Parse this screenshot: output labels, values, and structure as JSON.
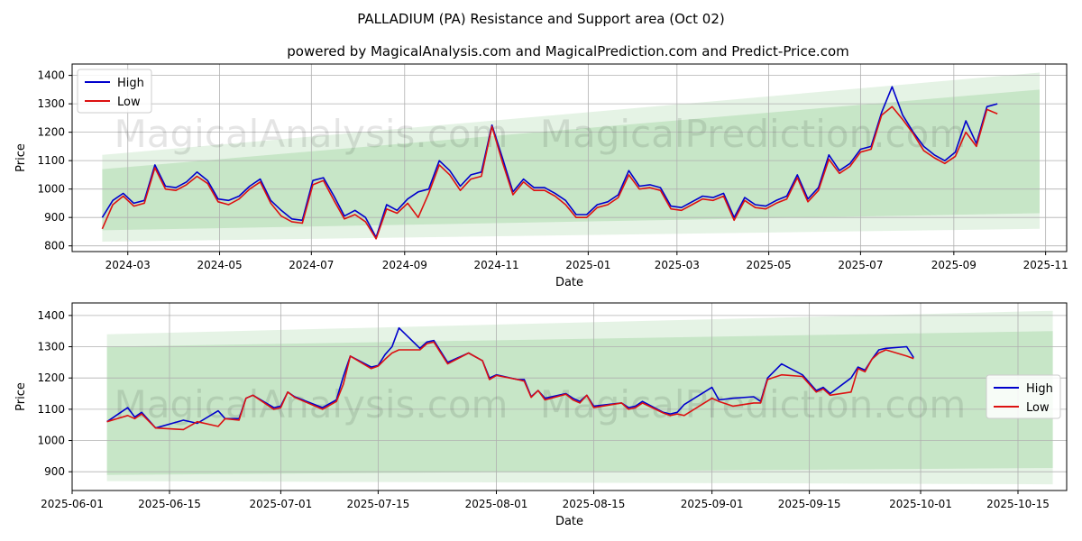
{
  "chart_data": {
    "title": "PALLADIUM (PA) Resistance and Support area (Oct 02)",
    "subtitle": "powered by MagicalAnalysis.com and MagicalPrediction.com and Predict-Price.com",
    "watermarks": [
      "MagicalAnalysis.com",
      "MagicalPrediction.com"
    ],
    "colors": {
      "high": "#0000cc",
      "low": "#dd1111",
      "band": "#2ca02c"
    },
    "charts": [
      {
        "type": "line",
        "xlabel": "Date",
        "ylabel": "Price",
        "xlim": [
          "2024-01-24",
          "2025-11-15"
        ],
        "ylim": [
          780,
          1440
        ],
        "xticks": [
          "2024-03-01",
          "2024-05-01",
          "2024-07-01",
          "2024-09-01",
          "2024-11-01",
          "2025-01-01",
          "2025-03-01",
          "2025-05-01",
          "2025-07-01",
          "2025-09-01",
          "2025-11-01"
        ],
        "xtick_labels": [
          "2024-03",
          "2024-05",
          "2024-07",
          "2024-09",
          "2024-11",
          "2025-01",
          "2025-03",
          "2025-05",
          "2025-07",
          "2025-09",
          "2025-11"
        ],
        "yticks": [
          800,
          900,
          1000,
          1100,
          1200,
          1300,
          1400
        ],
        "legend": [
          "High",
          "Low"
        ],
        "legend_position": "top-left",
        "grid": true,
        "bands": [
          {
            "x": [
              "2024-02-13",
              "2025-10-28"
            ],
            "upper": [
              1120,
              1410
            ],
            "lower": [
              815,
              860
            ]
          },
          {
            "x": [
              "2024-02-13",
              "2025-10-28"
            ],
            "upper": [
              1070,
              1350
            ],
            "lower": [
              855,
              915
            ]
          }
        ],
        "series": [
          {
            "name": "High",
            "x": [
              "2024-02-13",
              "2024-02-20",
              "2024-02-27",
              "2024-03-05",
              "2024-03-12",
              "2024-03-19",
              "2024-03-26",
              "2024-04-02",
              "2024-04-09",
              "2024-04-16",
              "2024-04-23",
              "2024-04-30",
              "2024-05-07",
              "2024-05-14",
              "2024-05-21",
              "2024-05-28",
              "2024-06-04",
              "2024-06-11",
              "2024-06-18",
              "2024-06-25",
              "2024-07-02",
              "2024-07-09",
              "2024-07-16",
              "2024-07-23",
              "2024-07-30",
              "2024-08-06",
              "2024-08-13",
              "2024-08-20",
              "2024-08-27",
              "2024-09-03",
              "2024-09-10",
              "2024-09-17",
              "2024-09-24",
              "2024-10-01",
              "2024-10-08",
              "2024-10-15",
              "2024-10-22",
              "2024-10-29",
              "2024-11-05",
              "2024-11-12",
              "2024-11-19",
              "2024-11-26",
              "2024-12-03",
              "2024-12-10",
              "2024-12-17",
              "2024-12-24",
              "2024-12-31",
              "2025-01-07",
              "2025-01-14",
              "2025-01-21",
              "2025-01-28",
              "2025-02-04",
              "2025-02-11",
              "2025-02-18",
              "2025-02-25",
              "2025-03-04",
              "2025-03-11",
              "2025-03-18",
              "2025-03-25",
              "2025-04-01",
              "2025-04-08",
              "2025-04-15",
              "2025-04-22",
              "2025-04-29",
              "2025-05-06",
              "2025-05-13",
              "2025-05-20",
              "2025-05-27",
              "2025-06-03",
              "2025-06-10",
              "2025-06-17",
              "2025-06-24",
              "2025-07-01",
              "2025-07-08",
              "2025-07-15",
              "2025-07-22",
              "2025-07-29",
              "2025-08-05",
              "2025-08-12",
              "2025-08-19",
              "2025-08-26",
              "2025-09-02",
              "2025-09-09",
              "2025-09-16",
              "2025-09-23",
              "2025-09-30"
            ],
            "values": [
              900,
              960,
              985,
              950,
              960,
              1085,
              1010,
              1005,
              1025,
              1060,
              1030,
              965,
              960,
              975,
              1010,
              1035,
              960,
              925,
              895,
              890,
              1030,
              1040,
              975,
              905,
              925,
              900,
              830,
              945,
              925,
              965,
              990,
              1000,
              1100,
              1065,
              1010,
              1050,
              1060,
              1225,
              1110,
              990,
              1035,
              1005,
              1005,
              985,
              960,
              910,
              910,
              945,
              955,
              980,
              1065,
              1010,
              1015,
              1005,
              940,
              935,
              955,
              975,
              970,
              985,
              900,
              970,
              945,
              940,
              960,
              975,
              1050,
              965,
              1005,
              1120,
              1065,
              1090,
              1140,
              1150,
              1270,
              1360,
              1260,
              1200,
              1150,
              1120,
              1100,
              1130,
              1240,
              1160,
              1290,
              1300
            ]
          },
          {
            "name": "Low",
            "x": [
              "2024-02-13",
              "2024-02-20",
              "2024-02-27",
              "2024-03-05",
              "2024-03-12",
              "2024-03-19",
              "2024-03-26",
              "2024-04-02",
              "2024-04-09",
              "2024-04-16",
              "2024-04-23",
              "2024-04-30",
              "2024-05-07",
              "2024-05-14",
              "2024-05-21",
              "2024-05-28",
              "2024-06-04",
              "2024-06-11",
              "2024-06-18",
              "2024-06-25",
              "2024-07-02",
              "2024-07-09",
              "2024-07-16",
              "2024-07-23",
              "2024-07-30",
              "2024-08-06",
              "2024-08-13",
              "2024-08-20",
              "2024-08-27",
              "2024-09-03",
              "2024-09-10",
              "2024-09-17",
              "2024-09-24",
              "2024-10-01",
              "2024-10-08",
              "2024-10-15",
              "2024-10-22",
              "2024-10-29",
              "2024-11-05",
              "2024-11-12",
              "2024-11-19",
              "2024-11-26",
              "2024-12-03",
              "2024-12-10",
              "2024-12-17",
              "2024-12-24",
              "2024-12-31",
              "2025-01-07",
              "2025-01-14",
              "2025-01-21",
              "2025-01-28",
              "2025-02-04",
              "2025-02-11",
              "2025-02-18",
              "2025-02-25",
              "2025-03-04",
              "2025-03-11",
              "2025-03-18",
              "2025-03-25",
              "2025-04-01",
              "2025-04-08",
              "2025-04-15",
              "2025-04-22",
              "2025-04-29",
              "2025-05-06",
              "2025-05-13",
              "2025-05-20",
              "2025-05-27",
              "2025-06-03",
              "2025-06-10",
              "2025-06-17",
              "2025-06-24",
              "2025-07-01",
              "2025-07-08",
              "2025-07-15",
              "2025-07-22",
              "2025-07-29",
              "2025-08-05",
              "2025-08-12",
              "2025-08-19",
              "2025-08-26",
              "2025-09-02",
              "2025-09-09",
              "2025-09-16",
              "2025-09-23",
              "2025-09-30"
            ],
            "values": [
              860,
              945,
              975,
              940,
              950,
              1075,
              1000,
              995,
              1015,
              1045,
              1020,
              955,
              945,
              965,
              1000,
              1025,
              950,
              905,
              885,
              880,
              1015,
              1030,
              960,
              895,
              910,
              885,
              825,
              930,
              915,
              950,
              900,
              985,
              1085,
              1050,
              995,
              1035,
              1045,
              1220,
              1095,
              980,
              1025,
              995,
              995,
              975,
              945,
              900,
              900,
              935,
              945,
              970,
              1050,
              1000,
              1005,
              995,
              930,
              925,
              945,
              965,
              960,
              975,
              890,
              960,
              935,
              930,
              950,
              965,
              1040,
              955,
              995,
              1105,
              1055,
              1080,
              1130,
              1140,
              1260,
              1290,
              1245,
              1195,
              1135,
              1110,
              1090,
              1115,
              1200,
              1150,
              1280,
              1265
            ]
          }
        ]
      },
      {
        "type": "line",
        "xlabel": "Date",
        "ylabel": "Price",
        "xlim": [
          "2025-06-01",
          "2025-10-22"
        ],
        "ylim": [
          840,
          1440
        ],
        "xticks": [
          "2025-06-01",
          "2025-06-15",
          "2025-07-01",
          "2025-07-15",
          "2025-08-01",
          "2025-08-15",
          "2025-09-01",
          "2025-09-15",
          "2025-10-01",
          "2025-10-15"
        ],
        "xtick_labels": [
          "2025-06-01",
          "2025-06-15",
          "2025-07-01",
          "2025-07-15",
          "2025-08-01",
          "2025-08-15",
          "2025-09-01",
          "2025-09-15",
          "2025-10-01",
          "2025-10-15"
        ],
        "yticks": [
          900,
          1000,
          1100,
          1200,
          1300,
          1400
        ],
        "legend": [
          "High",
          "Low"
        ],
        "legend_position": "center-right",
        "grid": true,
        "bands": [
          {
            "x": [
              "2025-06-06",
              "2025-10-20"
            ],
            "upper": [
              1340,
              1415
            ],
            "lower": [
              870,
              860
            ]
          },
          {
            "x": [
              "2025-06-06",
              "2025-10-20"
            ],
            "upper": [
              1300,
              1350
            ],
            "lower": [
              890,
              912
            ]
          }
        ],
        "series": [
          {
            "name": "High",
            "x": [
              "2025-06-06",
              "2025-06-09",
              "2025-06-10",
              "2025-06-11",
              "2025-06-13",
              "2025-06-17",
              "2025-06-19",
              "2025-06-22",
              "2025-06-23",
              "2025-06-25",
              "2025-06-26",
              "2025-06-27",
              "2025-06-30",
              "2025-07-01",
              "2025-07-02",
              "2025-07-03",
              "2025-07-07",
              "2025-07-09",
              "2025-07-10",
              "2025-07-11",
              "2025-07-14",
              "2025-07-15",
              "2025-07-16",
              "2025-07-17",
              "2025-07-18",
              "2025-07-21",
              "2025-07-22",
              "2025-07-23",
              "2025-07-25",
              "2025-07-28",
              "2025-07-30",
              "2025-07-31",
              "2025-08-01",
              "2025-08-04",
              "2025-08-05",
              "2025-08-06",
              "2025-08-07",
              "2025-08-08",
              "2025-08-11",
              "2025-08-12",
              "2025-08-13",
              "2025-08-14",
              "2025-08-15",
              "2025-08-19",
              "2025-08-20",
              "2025-08-21",
              "2025-08-22",
              "2025-08-25",
              "2025-08-26",
              "2025-08-27",
              "2025-08-28",
              "2025-09-01",
              "2025-09-02",
              "2025-09-04",
              "2025-09-07",
              "2025-09-08",
              "2025-09-09",
              "2025-09-11",
              "2025-09-14",
              "2025-09-16",
              "2025-09-17",
              "2025-09-18",
              "2025-09-21",
              "2025-09-22",
              "2025-09-23",
              "2025-09-24",
              "2025-09-25",
              "2025-09-26",
              "2025-09-29",
              "2025-09-30"
            ],
            "values": [
              1060,
              1105,
              1075,
              1090,
              1040,
              1065,
              1055,
              1095,
              1070,
              1070,
              1135,
              1145,
              1105,
              1110,
              1155,
              1140,
              1105,
              1130,
              1205,
              1270,
              1235,
              1240,
              1275,
              1300,
              1360,
              1295,
              1315,
              1320,
              1250,
              1280,
              1255,
              1200,
              1210,
              1195,
              1195,
              1140,
              1160,
              1135,
              1150,
              1135,
              1125,
              1145,
              1110,
              1120,
              1105,
              1110,
              1125,
              1090,
              1085,
              1090,
              1115,
              1170,
              1130,
              1135,
              1140,
              1125,
              1200,
              1245,
              1210,
              1160,
              1170,
              1150,
              1200,
              1235,
              1225,
              1260,
              1290,
              1295,
              1300,
              1265
            ]
          },
          {
            "name": "Low",
            "x": [
              "2025-06-06",
              "2025-06-09",
              "2025-06-10",
              "2025-06-11",
              "2025-06-13",
              "2025-06-17",
              "2025-06-19",
              "2025-06-22",
              "2025-06-23",
              "2025-06-25",
              "2025-06-26",
              "2025-06-27",
              "2025-06-30",
              "2025-07-01",
              "2025-07-02",
              "2025-07-03",
              "2025-07-07",
              "2025-07-09",
              "2025-07-10",
              "2025-07-11",
              "2025-07-14",
              "2025-07-15",
              "2025-07-16",
              "2025-07-17",
              "2025-07-18",
              "2025-07-21",
              "2025-07-22",
              "2025-07-23",
              "2025-07-25",
              "2025-07-28",
              "2025-07-30",
              "2025-07-31",
              "2025-08-01",
              "2025-08-04",
              "2025-08-05",
              "2025-08-06",
              "2025-08-07",
              "2025-08-08",
              "2025-08-11",
              "2025-08-12",
              "2025-08-13",
              "2025-08-14",
              "2025-08-15",
              "2025-08-19",
              "2025-08-20",
              "2025-08-21",
              "2025-08-22",
              "2025-08-25",
              "2025-08-26",
              "2025-08-27",
              "2025-08-28",
              "2025-09-01",
              "2025-09-02",
              "2025-09-04",
              "2025-09-07",
              "2025-09-08",
              "2025-09-09",
              "2025-09-11",
              "2025-09-14",
              "2025-09-16",
              "2025-09-17",
              "2025-09-18",
              "2025-09-21",
              "2025-09-22",
              "2025-09-23",
              "2025-09-24",
              "2025-09-25",
              "2025-09-26",
              "2025-09-29",
              "2025-09-30"
            ],
            "values": [
              1060,
              1080,
              1070,
              1085,
              1040,
              1035,
              1060,
              1045,
              1070,
              1065,
              1135,
              1145,
              1100,
              1105,
              1155,
              1138,
              1100,
              1125,
              1180,
              1270,
              1230,
              1238,
              1260,
              1280,
              1290,
              1290,
              1310,
              1315,
              1245,
              1280,
              1255,
              1195,
              1208,
              1195,
              1190,
              1138,
              1160,
              1130,
              1148,
              1130,
              1120,
              1145,
              1105,
              1120,
              1100,
              1105,
              1120,
              1088,
              1080,
              1085,
              1080,
              1135,
              1125,
              1110,
              1120,
              1120,
              1195,
              1210,
              1205,
              1155,
              1165,
              1145,
              1155,
              1230,
              1220,
              1260,
              1280,
              1290,
              1270,
              1262
            ]
          }
        ]
      }
    ]
  }
}
